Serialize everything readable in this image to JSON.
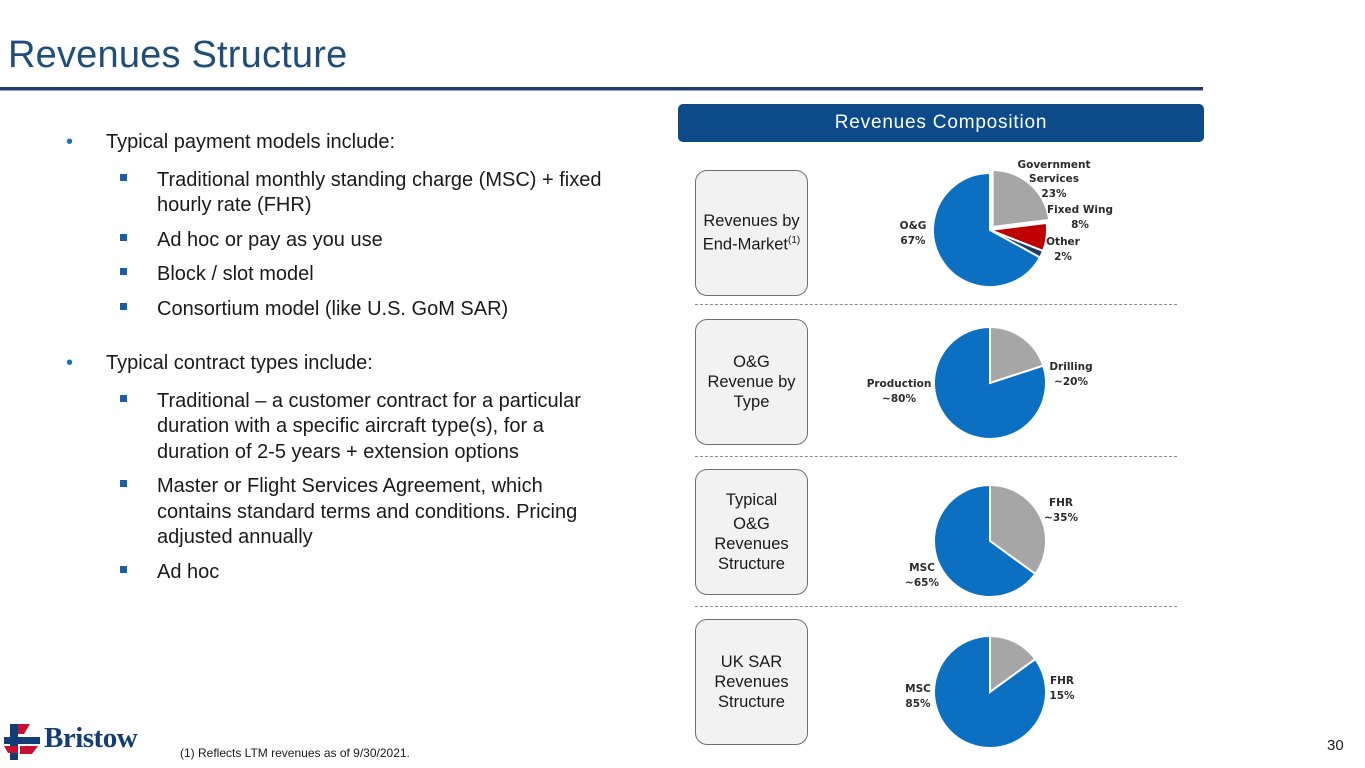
{
  "page": {
    "title": "Revenues Structure",
    "page_number": "30",
    "footnote": "(1) Reflects LTM revenues as of 9/30/2021.",
    "logo_text": "Bristow"
  },
  "bullets": {
    "payment_heading": "Typical payment models include:",
    "payment_items": [
      "Traditional monthly standing charge (MSC) + fixed hourly rate (FHR)",
      "Ad hoc or pay as you use",
      "Block / slot model",
      "Consortium model (like U.S. GoM SAR)"
    ],
    "contract_heading": "Typical contract types include:",
    "contract_items": [
      "Traditional – a customer contract for a particular duration with a specific aircraft type(s), for a duration of 2-5 years + extension options",
      "Master or Flight Services Agreement, which contains standard terms and conditions. Pricing adjusted annually",
      "Ad hoc"
    ]
  },
  "panel": {
    "header": "Revenues Composition",
    "row_labels": {
      "end_market": "Revenues by End-Market",
      "end_market_sup": "(1)",
      "og_type": "O&G Revenue by Type",
      "og_structure_line1": "Typical",
      "og_structure_rest": "O&G Revenues Structure",
      "uk_sar": "UK SAR Revenues Structure"
    }
  },
  "colors": {
    "blue": "#0b6fc2",
    "gray": "#a6a6a6",
    "red": "#c00000",
    "navy": "#1f3a6b",
    "header_blue": "#0c4a8a"
  },
  "chart_data": [
    {
      "type": "pie",
      "name_row": "Revenues by End-Market",
      "slices": [
        {
          "label": "Government Services",
          "value_label": "23%",
          "value": 23
        },
        {
          "label": "Fixed Wing",
          "value_label": "8%",
          "value": 8
        },
        {
          "label": "Other",
          "value_label": "2%",
          "value": 2
        },
        {
          "label": "O&G",
          "value_label": "67%",
          "value": 67
        }
      ]
    },
    {
      "type": "pie",
      "name_row": "O&G Revenue by Type",
      "slices": [
        {
          "label": "Drilling",
          "value_label": "~20%",
          "value": 20
        },
        {
          "label": "Production",
          "value_label": "~80%",
          "value": 80
        }
      ]
    },
    {
      "type": "pie",
      "name_row": "Typical O&G Revenues Structure",
      "slices": [
        {
          "label": "FHR",
          "value_label": "~35%",
          "value": 35
        },
        {
          "label": "MSC",
          "value_label": "~65%",
          "value": 65
        }
      ]
    },
    {
      "type": "pie",
      "name_row": "UK SAR Revenues Structure",
      "slices": [
        {
          "label": "FHR",
          "value_label": "15%",
          "value": 15
        },
        {
          "label": "MSC",
          "value_label": "85%",
          "value": 85
        }
      ]
    }
  ]
}
